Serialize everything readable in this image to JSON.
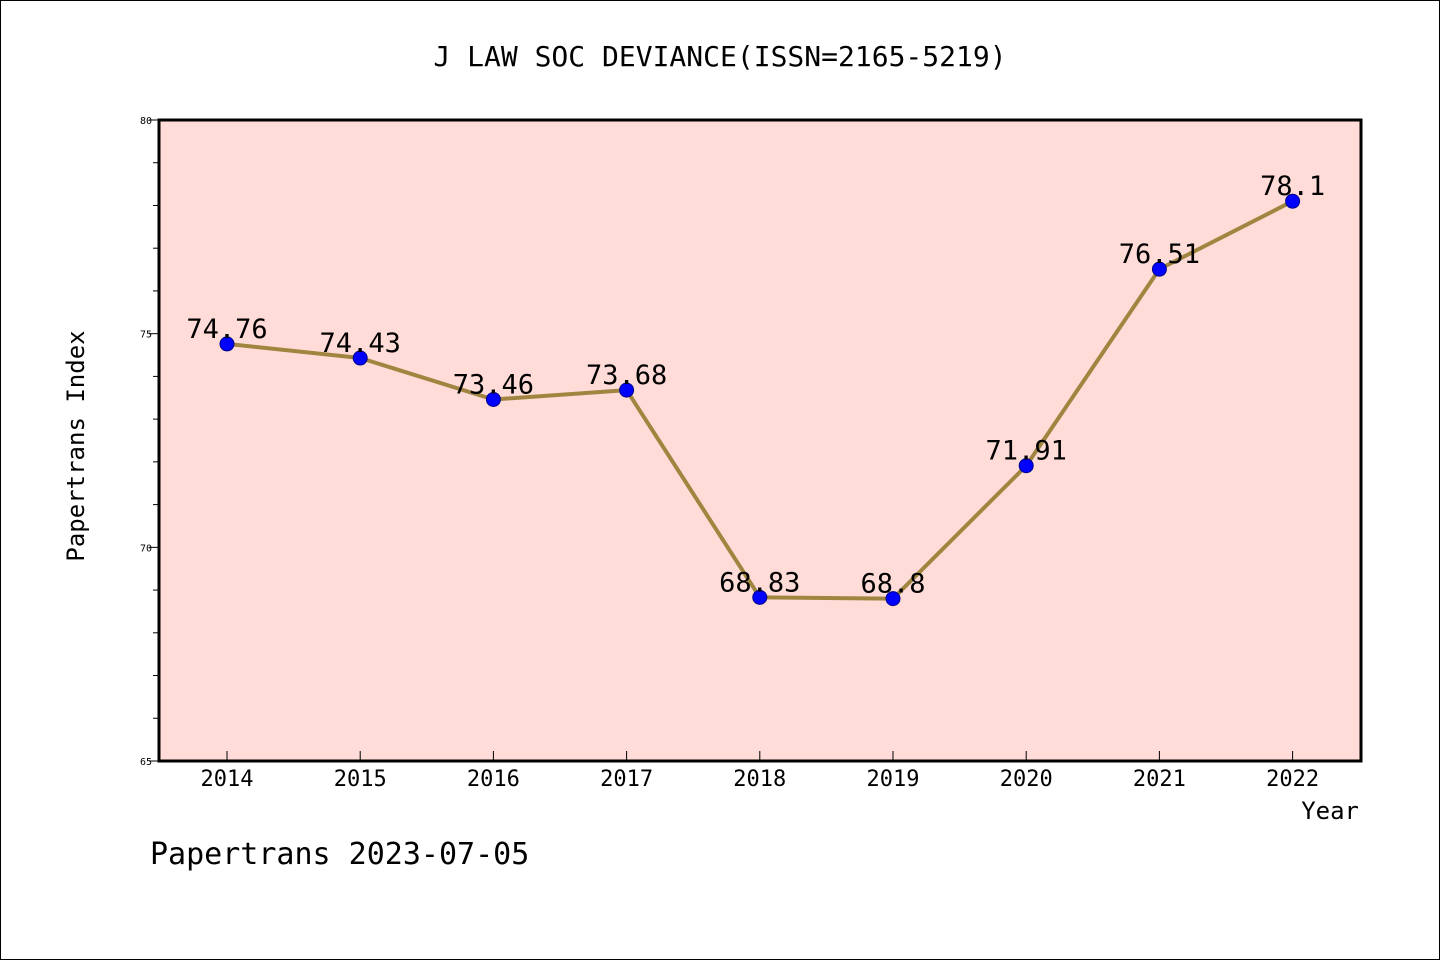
{
  "chart_data": {
    "type": "line",
    "title": "J LAW SOC DEVIANCE(ISSN=2165-5219)",
    "xlabel": "Year",
    "ylabel": "Papertrans Index",
    "x": [
      "2014",
      "2015",
      "2016",
      "2017",
      "2018",
      "2019",
      "2020",
      "2021",
      "2022"
    ],
    "values": [
      74.76,
      74.43,
      73.46,
      73.68,
      68.83,
      68.8,
      71.91,
      76.51,
      78.1
    ],
    "data_labels": [
      "74.76",
      "74.43",
      "73.46",
      "73.68",
      "68.83",
      "68.8",
      "71.91",
      "76.51",
      "78.1"
    ],
    "ylim": [
      65,
      80
    ],
    "yticks": [
      65,
      70,
      75,
      80
    ],
    "ytick_labels": [
      "65",
      "70",
      "75",
      "80"
    ],
    "grid": false,
    "legend": "none",
    "colors": {
      "plot_background": "#ffdcd8",
      "line": "#a08540",
      "marker": "#0000ff",
      "marker_edge": "#00008b"
    }
  },
  "footer": "Papertrans 2023-07-05"
}
